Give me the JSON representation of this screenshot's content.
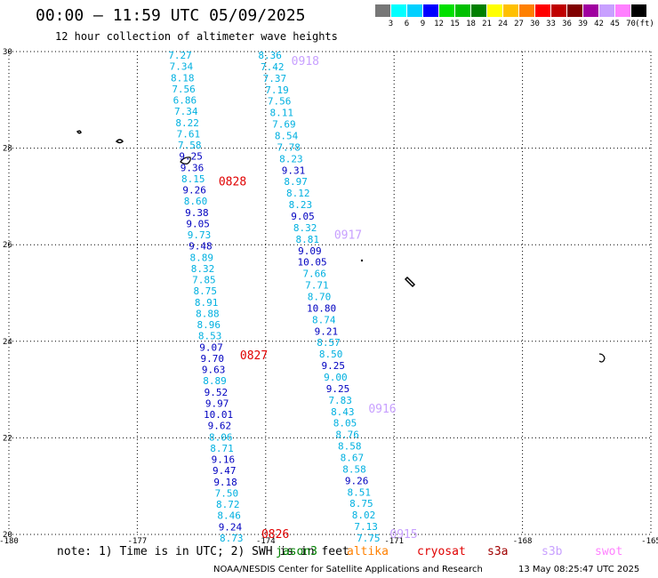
{
  "header": {
    "title": "00:00 – 11:59 UTC 05/09/2025",
    "subtitle": "12 hour collection of altimeter wave heights"
  },
  "scale": {
    "unit": "(ft)",
    "colors": [
      "#777777",
      "#00ffff",
      "#00d0ff",
      "#0000ff",
      "#00e000",
      "#00c000",
      "#008000",
      "#ffff00",
      "#ffc000",
      "#ff8000",
      "#ff0000",
      "#c00000",
      "#800000",
      "#a000a0",
      "#c8a0ff",
      "#ff80ff",
      "#000000"
    ],
    "labels": [
      "3",
      "6",
      "9",
      "12",
      "15",
      "18",
      "21",
      "24",
      "27",
      "30",
      "33",
      "36",
      "39",
      "42",
      "45",
      "70"
    ]
  },
  "footer": {
    "note": "note: 1) Time is in UTC; 2) SWH is in feet",
    "credit": "NOAA/NESDIS Center for Satellite Applications and Research",
    "generated": "13 May 08:25:47 UTC 2025"
  },
  "satellites": [
    {
      "name": "jason3",
      "color": "#008000"
    },
    {
      "name": "altika",
      "color": "#ff8000"
    },
    {
      "name": "cryosat",
      "color": "#e00000"
    },
    {
      "name": "s3a",
      "color": "#a00000"
    },
    {
      "name": "s3b",
      "color": "#c8a0ff"
    },
    {
      "name": "swot",
      "color": "#ff80ff"
    }
  ],
  "chart_data": {
    "type": "scatter",
    "xlim": [
      -180,
      -165
    ],
    "ylim": [
      20,
      30
    ],
    "xticks": [
      -180,
      -177,
      -174,
      -171,
      -168,
      -165
    ],
    "xtick_labels": [
      "-180",
      "-177",
      "-174",
      "-171",
      "-168",
      "-165"
    ],
    "yticks": [
      20,
      22,
      24,
      26,
      28,
      30
    ],
    "ytick_labels": [
      "20",
      "22",
      "24",
      "26",
      "28",
      "30"
    ],
    "grid": true,
    "colors": {
      "cyan": "#00b0e0",
      "blue": "#0000c0"
    },
    "track_labels": [
      {
        "text": "0918",
        "color": "#c8a0ff",
        "lon": -173.4,
        "lat": 29.8
      },
      {
        "text": "0828",
        "color": "#e00000",
        "lon": -175.1,
        "lat": 27.3
      },
      {
        "text": "0917",
        "color": "#c8a0ff",
        "lon": -172.4,
        "lat": 26.2
      },
      {
        "text": "0827",
        "color": "#e00000",
        "lon": -174.6,
        "lat": 23.7
      },
      {
        "text": "0916",
        "color": "#c8a0ff",
        "lon": -171.6,
        "lat": 22.6
      },
      {
        "text": "0826",
        "color": "#e00000",
        "lon": -174.1,
        "lat": 20.0
      },
      {
        "text": "0915",
        "color": "#c8a0ff",
        "lon": -171.1,
        "lat": 20.0
      }
    ],
    "series": [
      {
        "name": "0828",
        "lon_start": -176.0,
        "lat_start": 30.0,
        "lon_end": -174.8,
        "lat_end": 20.0,
        "values": [
          7.27,
          7.34,
          8.18,
          7.56,
          6.86,
          7.34,
          8.22,
          7.61,
          7.58,
          9.25,
          9.36,
          8.15,
          9.26,
          8.6,
          9.38,
          9.05,
          9.73,
          9.48,
          8.89,
          8.32,
          7.85,
          8.75,
          8.91,
          8.88,
          8.96,
          8.53,
          9.07,
          9.7,
          9.63,
          8.89,
          9.52,
          9.97,
          10.01,
          9.62,
          8.06,
          8.71,
          9.16,
          9.47,
          9.18,
          7.5,
          8.72,
          8.46,
          9.24,
          8.73
        ],
        "colors": [
          "c",
          "c",
          "c",
          "c",
          "c",
          "c",
          "c",
          "c",
          "c",
          "b",
          "b",
          "c",
          "b",
          "c",
          "b",
          "b",
          "c",
          "b",
          "c",
          "c",
          "c",
          "c",
          "c",
          "c",
          "c",
          "c",
          "b",
          "b",
          "b",
          "c",
          "b",
          "b",
          "b",
          "b",
          "c",
          "c",
          "b",
          "b",
          "b",
          "c",
          "c",
          "c",
          "b",
          "c"
        ]
      },
      {
        "name": "0918",
        "lon_start": -173.9,
        "lat_start": 30.0,
        "lon_end": -171.6,
        "lat_end": 20.0,
        "values": [
          8.36,
          7.42,
          7.37,
          7.19,
          7.56,
          8.11,
          7.69,
          8.54,
          7.78,
          8.23,
          9.31,
          8.97,
          8.12,
          8.23,
          9.05,
          8.32,
          8.81,
          9.09,
          10.05,
          7.66,
          7.71,
          8.7,
          10.8,
          8.74,
          9.21,
          8.57,
          8.5,
          9.25,
          9.0,
          9.25,
          7.83,
          8.43,
          8.05,
          8.76,
          8.58,
          8.67,
          8.58,
          9.26,
          8.51,
          8.75,
          8.02,
          7.13,
          7.75
        ],
        "colors": [
          "c",
          "c",
          "c",
          "c",
          "c",
          "c",
          "c",
          "c",
          "c",
          "c",
          "b",
          "c",
          "c",
          "c",
          "b",
          "c",
          "c",
          "b",
          "b",
          "c",
          "c",
          "c",
          "b",
          "c",
          "b",
          "c",
          "c",
          "b",
          "c",
          "b",
          "c",
          "c",
          "c",
          "c",
          "c",
          "c",
          "c",
          "b",
          "c",
          "c",
          "c",
          "c",
          "c"
        ]
      }
    ]
  }
}
